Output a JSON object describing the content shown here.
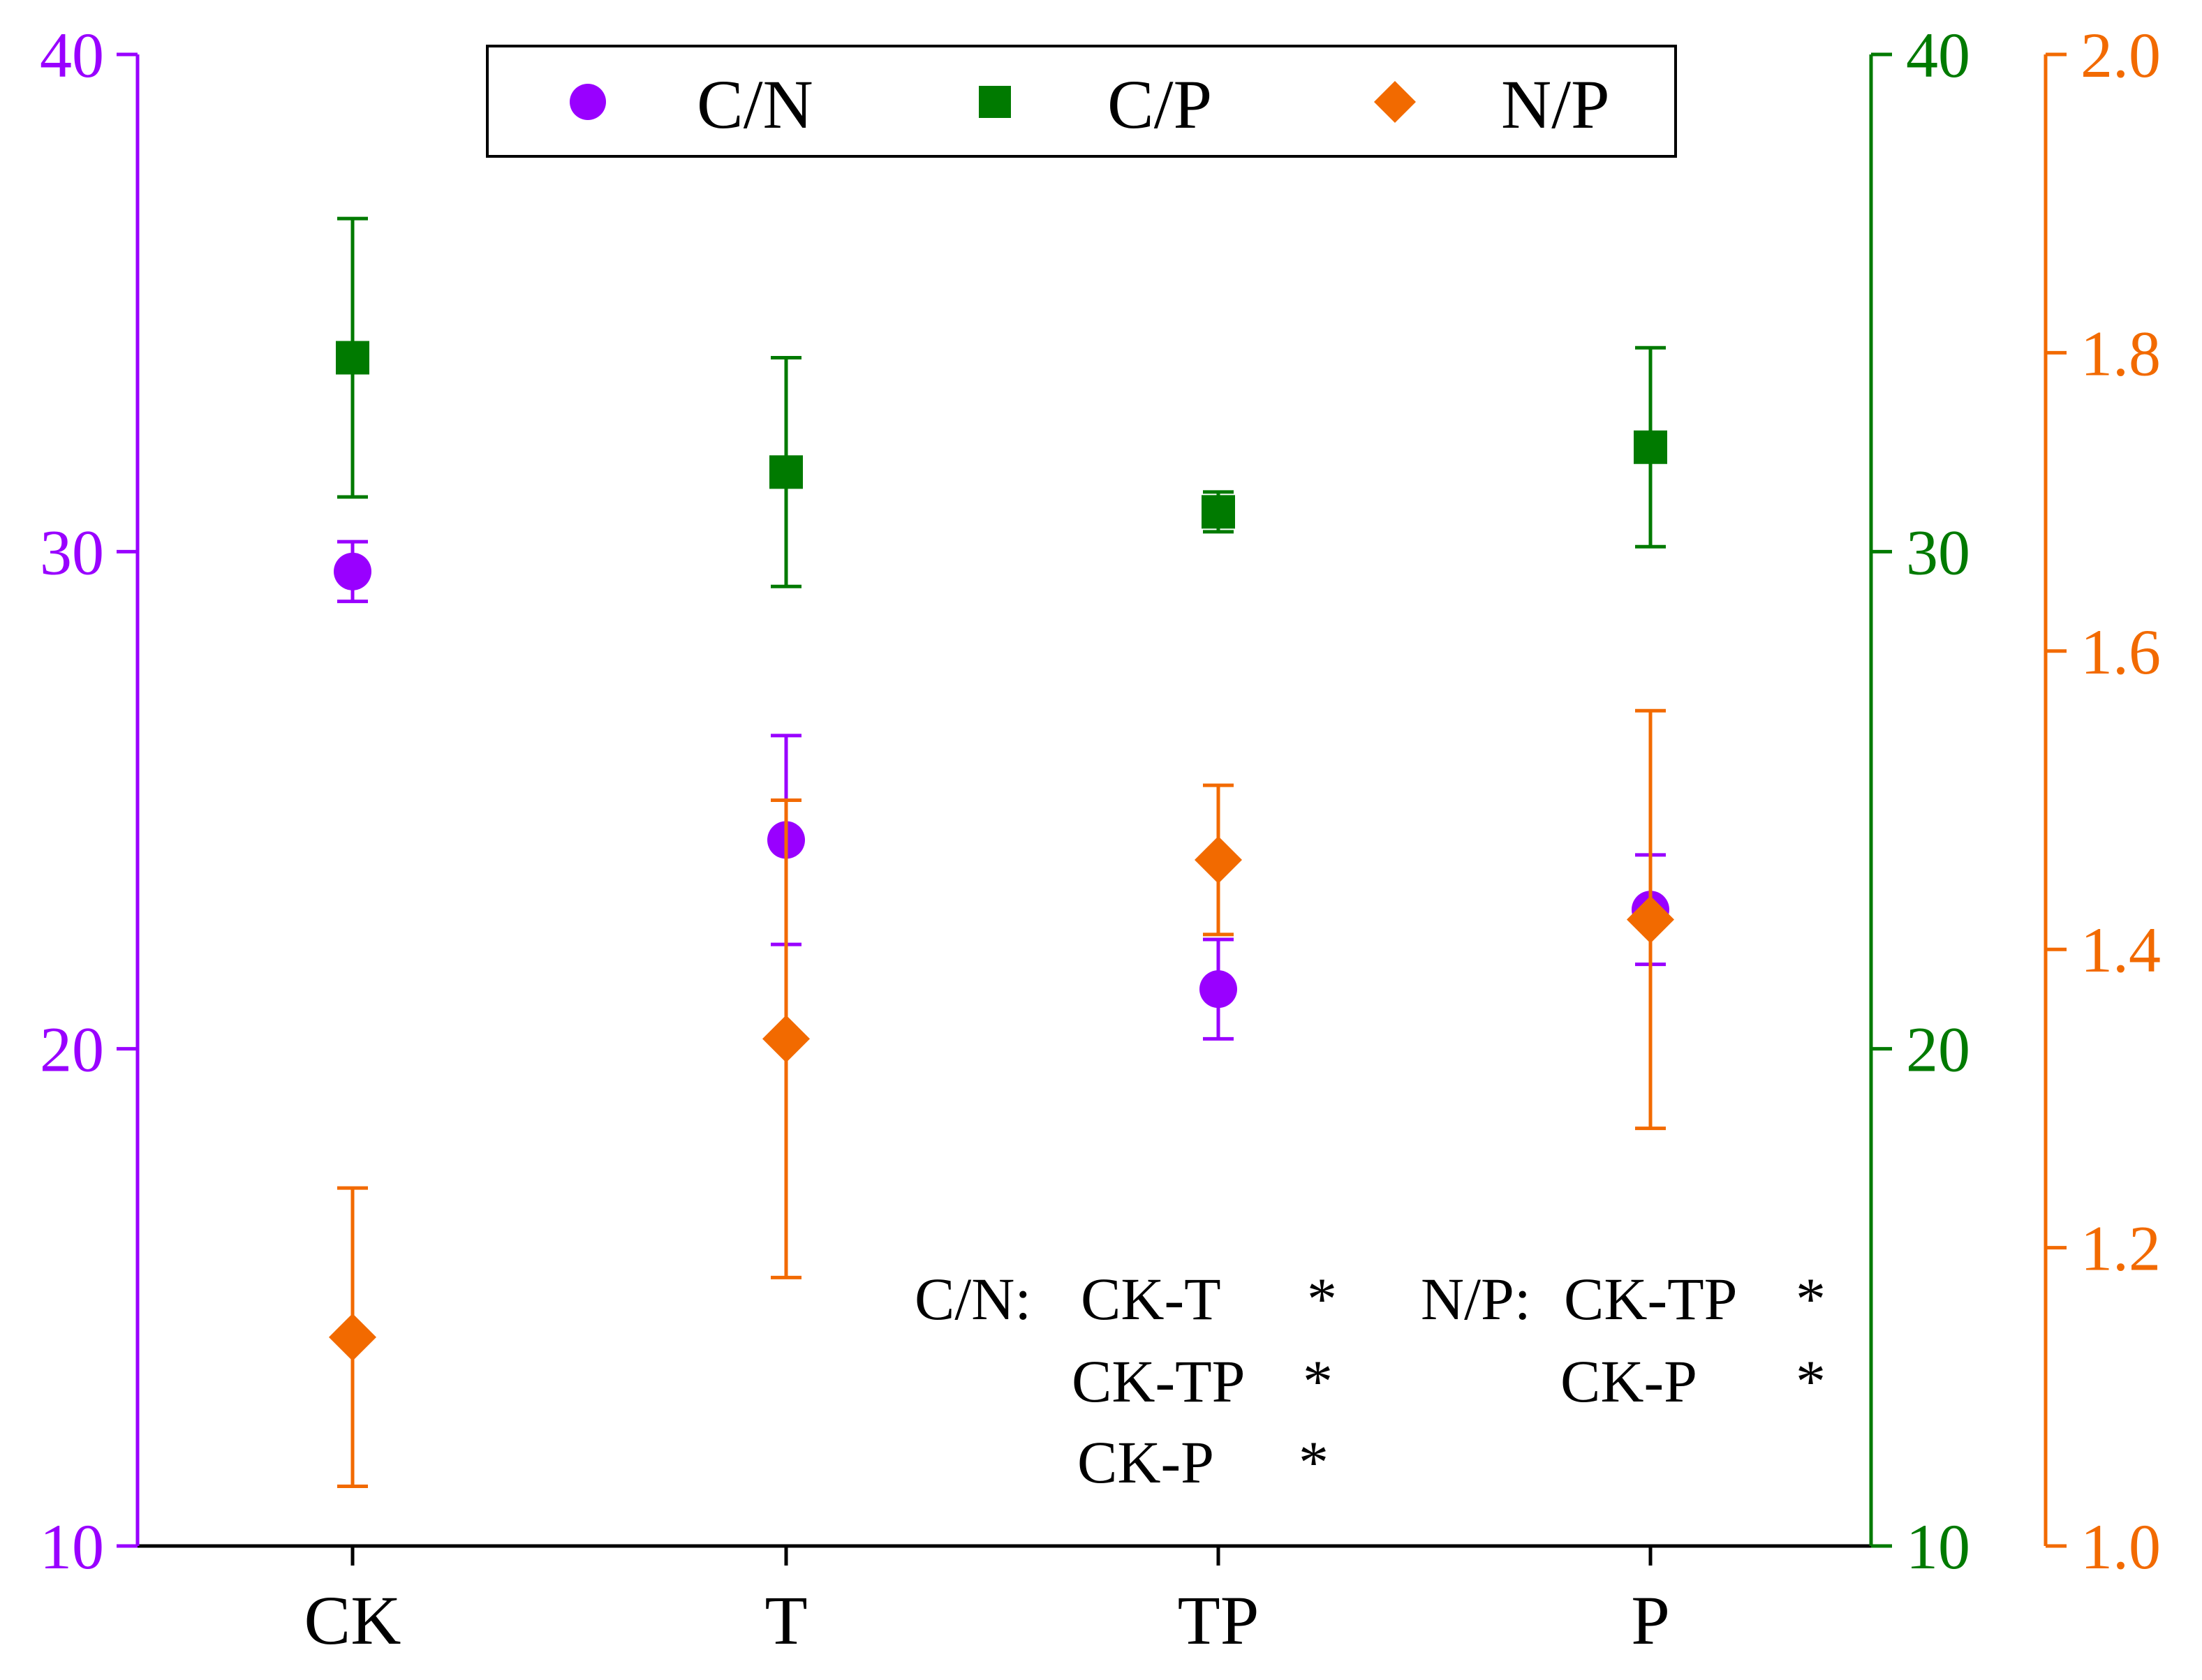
{
  "chart_data": {
    "type": "scatter",
    "title": "",
    "categories": [
      "CK",
      "T",
      "TP",
      "P"
    ],
    "colors": {
      "C/N": "#9900FF",
      "C/P": "#007A00",
      "N/P": "#F26A00",
      "axis": "#000000"
    },
    "axes": {
      "left": {
        "series": "C/N",
        "ylim": [
          10,
          40
        ],
        "ticks": [
          10,
          20,
          30,
          40
        ],
        "tick_labels": [
          "10",
          "20",
          "30",
          "40"
        ]
      },
      "right1": {
        "series": "C/P",
        "ylim": [
          10,
          40
        ],
        "ticks": [
          10,
          20,
          30,
          40
        ],
        "tick_labels": [
          "10",
          "20",
          "30",
          "40"
        ]
      },
      "right2": {
        "series": "N/P",
        "ylim": [
          1.0,
          2.0
        ],
        "ticks": [
          1.0,
          1.2,
          1.4,
          1.6,
          1.8,
          2.0
        ],
        "tick_labels": [
          "1.0",
          "1.2",
          "1.4",
          "1.6",
          "1.8",
          "2.0"
        ]
      }
    },
    "series": [
      {
        "name": "C/N",
        "axis": "left",
        "marker": "circle",
        "values": [
          29.6,
          24.2,
          21.2,
          22.8
        ],
        "errors": [
          0.6,
          2.1,
          1.0,
          1.1
        ]
      },
      {
        "name": "C/P",
        "axis": "right1",
        "marker": "square",
        "values": [
          33.9,
          31.6,
          30.8,
          32.1
        ],
        "errors": [
          2.8,
          2.3,
          0.4,
          2.0
        ]
      },
      {
        "name": "N/P",
        "axis": "right2",
        "marker": "diamond",
        "values": [
          1.14,
          1.34,
          1.46,
          1.42
        ],
        "errors": [
          0.1,
          0.16,
          0.05,
          0.14
        ]
      }
    ],
    "legend": {
      "position": "top-center",
      "entries": [
        "C/N",
        "C/P",
        "N/P"
      ]
    },
    "annotations": {
      "cn_label": "C/N:",
      "cn_pairs": [
        {
          "pair": "CK-T",
          "mark": "*"
        },
        {
          "pair": "CK-TP",
          "mark": "*"
        },
        {
          "pair": "CK-P",
          "mark": "*"
        }
      ],
      "np_label": "N/P:",
      "np_pairs": [
        {
          "pair": "CK-TP",
          "mark": "*"
        },
        {
          "pair": "CK-P",
          "mark": "*"
        }
      ]
    }
  }
}
